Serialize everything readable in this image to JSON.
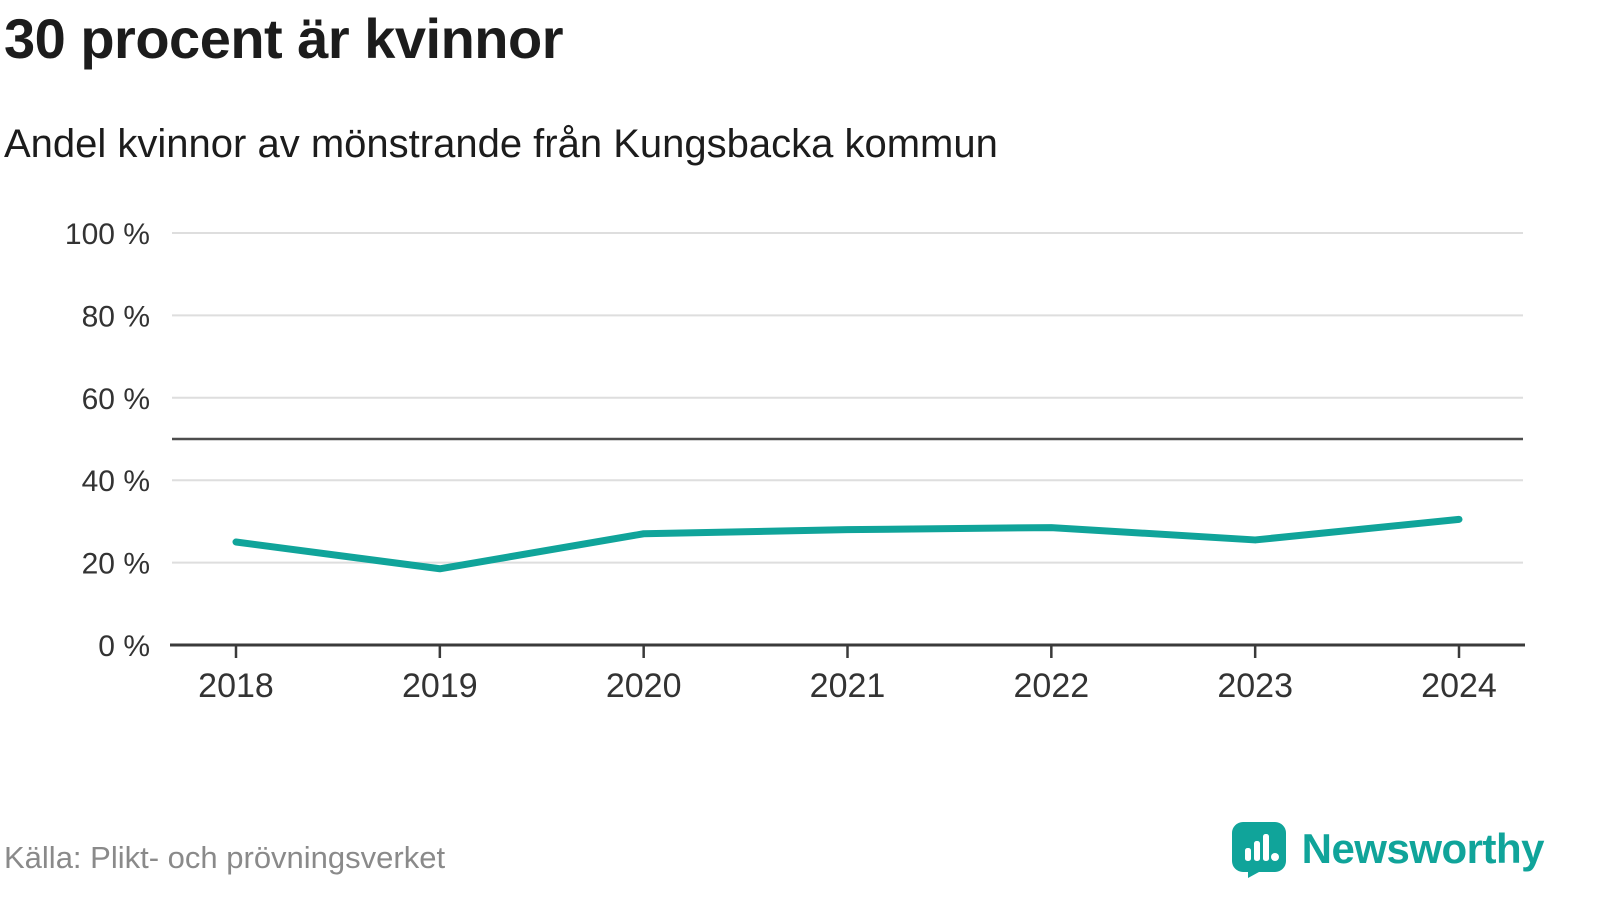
{
  "header": {
    "title": "30 procent är kvinnor",
    "subtitle": "Andel kvinnor av mönstrande från Kungsbacka kommun"
  },
  "chart_data": {
    "type": "line",
    "title": "30 procent är kvinnor",
    "subtitle": "Andel kvinnor av mönstrande från Kungsbacka kommun",
    "x": [
      2018,
      2019,
      2020,
      2021,
      2022,
      2023,
      2024
    ],
    "series": [
      {
        "name": "Andel kvinnor av mönstrande",
        "values": [
          25,
          18.5,
          27,
          28,
          28.5,
          25.5,
          30.5
        ]
      }
    ],
    "ylim": [
      0,
      100
    ],
    "yticks": [
      0,
      20,
      40,
      60,
      80,
      100
    ],
    "ytick_labels": [
      "0 %",
      "20 %",
      "40 %",
      "60 %",
      "80 %",
      "100 %"
    ],
    "xtick_labels": [
      "2018",
      "2019",
      "2020",
      "2021",
      "2022",
      "2023",
      "2024"
    ],
    "reference_line": 50,
    "grid": true,
    "legend": "none",
    "line_color": "#10a49a",
    "grid_color": "#dedede",
    "axis_color": "#3a3a3a",
    "reference_line_color": "#4d4d4d",
    "tick_label_color": "#333333"
  },
  "footer": {
    "source_label": "Källa: Plikt- och prövningsverket",
    "brand_name": "Newsworthy",
    "brand_color": "#10a49a"
  }
}
